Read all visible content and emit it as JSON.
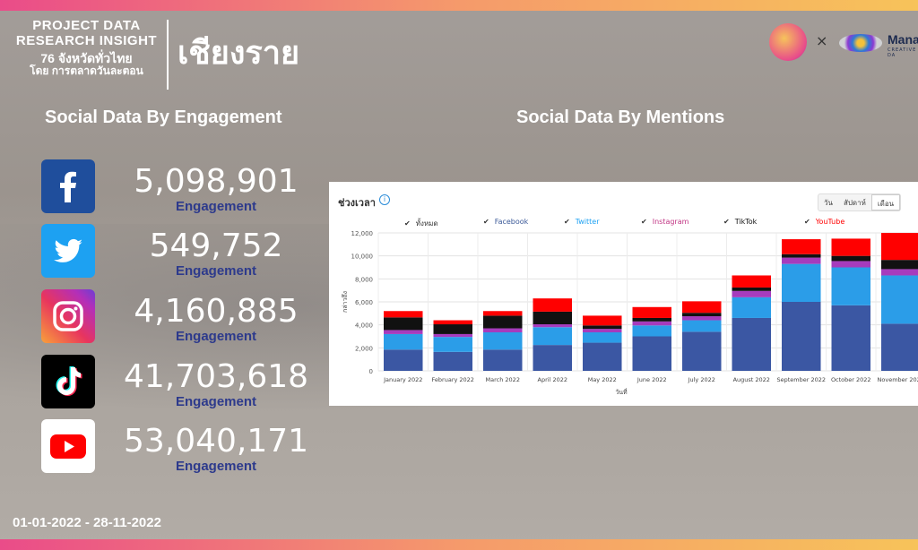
{
  "header": {
    "line1": "PROJECT DATA",
    "line2": "RESEARCH INSIGHT",
    "line3": "76 จังหวัดทั่วไทย",
    "line4": "โดย การตลาดวันละตอน",
    "province": "เชียงราย",
    "partner_x": "×",
    "partner_name": "Mana",
    "partner_sub": "CREATIVE DA"
  },
  "headings": {
    "engagement": "Social Data By Engagement",
    "mentions": "Social Data By Mentions"
  },
  "engagement": [
    {
      "platform": "facebook-icon",
      "value": "5,098,901",
      "label": "Engagement",
      "color": "#1f4e9c"
    },
    {
      "platform": "twitter-icon",
      "value": "549,752",
      "label": "Engagement",
      "color": "#1da1f2"
    },
    {
      "platform": "instagram-icon",
      "value": "4,160,885",
      "label": "Engagement",
      "color": "#d6249f"
    },
    {
      "platform": "tiktok-icon",
      "value": "41,703,618",
      "label": "Engagement",
      "color": "#000000"
    },
    {
      "platform": "youtube-icon",
      "value": "53,040,171",
      "label": "Engagement",
      "color": "#ff0000"
    }
  ],
  "date_range": "01-01-2022 - 28-11-2022",
  "panel": {
    "title": "ช่วงเวลา",
    "info": "i",
    "segments": [
      "วัน",
      "สัปดาห์",
      "เดือน"
    ],
    "active_segment": "เดือน",
    "legend": [
      {
        "label": "ทั้งหมด",
        "color": "#333333"
      },
      {
        "label": "Facebook",
        "color": "#3b5998"
      },
      {
        "label": "Twitter",
        "color": "#1da1f2"
      },
      {
        "label": "Instagram",
        "color": "#c13584"
      },
      {
        "label": "TikTok",
        "color": "#111111"
      },
      {
        "label": "YouTube",
        "color": "#ff0000"
      }
    ]
  },
  "chart_data": {
    "type": "bar",
    "stacked": true,
    "title": "",
    "xlabel": "วันที่",
    "ylabel": "กล่าวถึง",
    "ylim": [
      0,
      12000
    ],
    "yticks": [
      "0",
      "2,000",
      "4,000",
      "6,000",
      "8,000",
      "10,000",
      "12,000"
    ],
    "grid": true,
    "categories": [
      "January 2022",
      "February 2022",
      "March 2022",
      "April 2022",
      "May 2022",
      "June 2022",
      "July 2022",
      "August 2022",
      "September 2022",
      "October 2022",
      "November 2022"
    ],
    "series": [
      {
        "name": "Facebook",
        "color": "#3b57a3",
        "values": [
          1850,
          1650,
          1850,
          2250,
          2450,
          3000,
          3400,
          4600,
          6000,
          5700,
          4100
        ]
      },
      {
        "name": "Twitter",
        "color": "#2b9de8",
        "values": [
          1350,
          1300,
          1500,
          1550,
          900,
          950,
          1000,
          1800,
          3300,
          3300,
          4200
        ]
      },
      {
        "name": "Instagram",
        "color": "#a63bbd",
        "values": [
          350,
          250,
          350,
          250,
          300,
          350,
          350,
          550,
          550,
          550,
          550
        ]
      },
      {
        "name": "TikTok",
        "color": "#111111",
        "values": [
          1100,
          850,
          1100,
          1100,
          300,
          300,
          300,
          300,
          300,
          450,
          800
        ]
      },
      {
        "name": "YouTube",
        "color": "#ff0000",
        "values": [
          550,
          350,
          400,
          1150,
          850,
          950,
          1000,
          1050,
          1300,
          1500,
          2350
        ]
      }
    ]
  }
}
